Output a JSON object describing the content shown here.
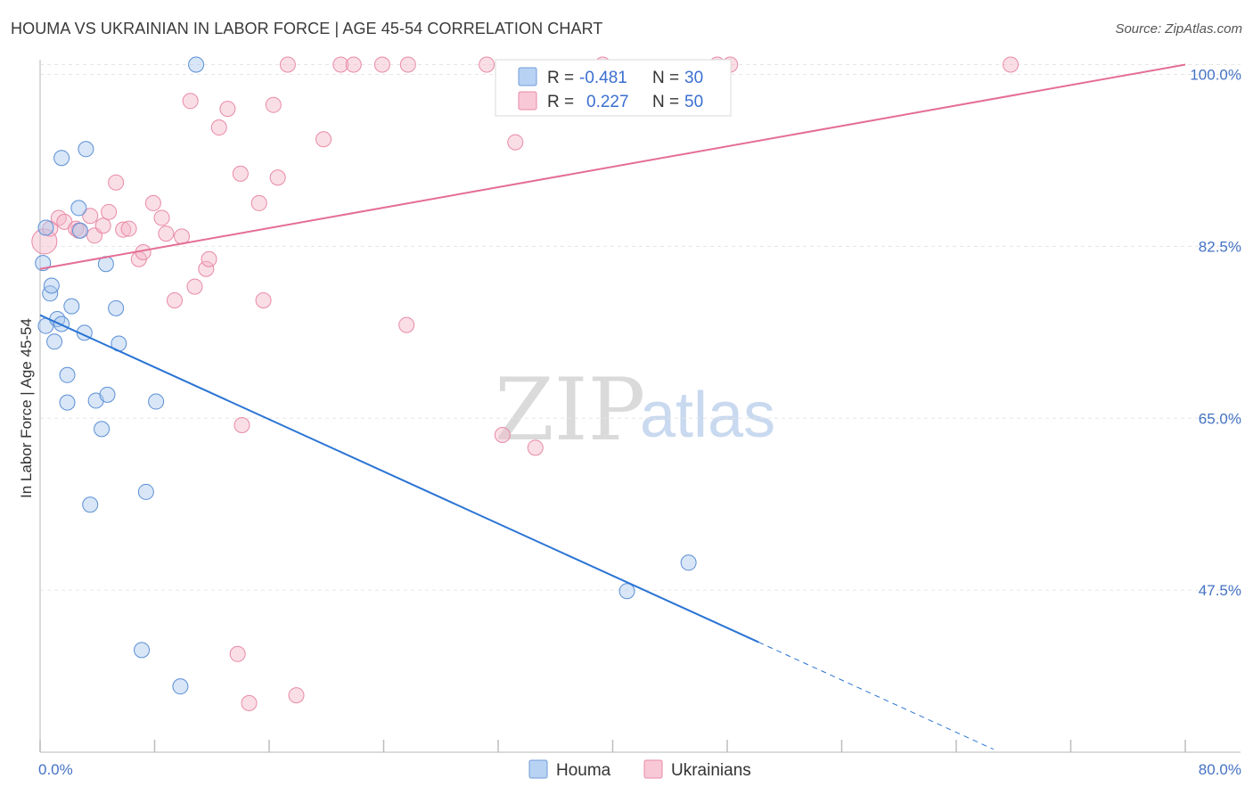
{
  "header": {
    "title": "HOUMA VS UKRAINIAN IN LABOR FORCE | AGE 45-54 CORRELATION CHART",
    "source": "Source: ZipAtlas.com"
  },
  "watermark": {
    "zip": "ZIP",
    "atlas": "atlas"
  },
  "legend": {
    "rows": [
      {
        "r_label": "R =",
        "r_value": "-0.481",
        "n_label": "N =",
        "n_value": "30",
        "color": "#a9c7ee"
      },
      {
        "r_label": "R =",
        "r_value": "0.227",
        "n_label": "N =",
        "n_value": "50",
        "color": "#f4b6c8"
      }
    ]
  },
  "bottom_legend": {
    "houma": "Houma",
    "ukrainians": "Ukrainians"
  },
  "chart_data": {
    "type": "scatter",
    "title": "HOUMA VS UKRAINIAN IN LABOR FORCE | AGE 45-54 CORRELATION CHART",
    "xlabel": "",
    "ylabel": "In Labor Force | Age 45-54",
    "xlim": [
      0,
      80
    ],
    "ylim": [
      31,
      101.5
    ],
    "x_tick_labels": [
      "0.0%",
      "80.0%"
    ],
    "y_ticks": [
      47.5,
      65.0,
      82.5,
      100.0
    ],
    "y_tick_labels": [
      "47.5%",
      "65.0%",
      "82.5%",
      "100.0%"
    ],
    "grid": true,
    "series": [
      {
        "name": "Houma",
        "color": "#a9c7ee",
        "stroke": "#5b8fd6",
        "trend_color": "#2a74d4",
        "r": -0.481,
        "n": 30,
        "trend": {
          "x0": 0,
          "y0": 75.5,
          "x1": 50.2,
          "y1": 42.2,
          "dash_to_x": 66.6,
          "dash_to_y": 31.3
        },
        "points": [
          [
            0.2,
            80.8
          ],
          [
            0.4,
            74.4
          ],
          [
            0.7,
            77.7
          ],
          [
            0.8,
            78.5
          ],
          [
            1.0,
            72.8
          ],
          [
            1.2,
            75.1
          ],
          [
            1.5,
            74.6
          ],
          [
            1.5,
            91.5
          ],
          [
            1.9,
            66.6
          ],
          [
            1.9,
            69.4
          ],
          [
            2.2,
            76.4
          ],
          [
            2.7,
            86.4
          ],
          [
            2.8,
            84.1
          ],
          [
            3.1,
            73.7
          ],
          [
            3.2,
            92.4
          ],
          [
            3.5,
            56.2
          ],
          [
            3.9,
            66.8
          ],
          [
            4.3,
            63.9
          ],
          [
            4.7,
            67.4
          ],
          [
            4.6,
            80.7
          ],
          [
            5.3,
            76.2
          ],
          [
            5.5,
            72.6
          ],
          [
            7.4,
            57.5
          ],
          [
            7.1,
            41.4
          ],
          [
            8.1,
            66.7
          ],
          [
            9.8,
            37.7
          ],
          [
            10.9,
            101.0
          ],
          [
            41.0,
            47.4
          ],
          [
            45.3,
            50.3
          ],
          [
            0.4,
            84.4
          ]
        ]
      },
      {
        "name": "Ukrainians",
        "color": "#f4b6c8",
        "stroke": "#e88aa6",
        "trend_color": "#e46e94",
        "r": 0.227,
        "n": 50,
        "trend": {
          "x0": 0,
          "y0": 80.2,
          "x1": 80,
          "y1": 101.0
        },
        "points": [
          [
            0.3,
            83.0
          ],
          [
            0.7,
            84.3
          ],
          [
            1.3,
            85.4
          ],
          [
            1.7,
            85.0
          ],
          [
            2.5,
            84.3
          ],
          [
            2.7,
            84.1
          ],
          [
            3.5,
            85.6
          ],
          [
            3.8,
            83.6
          ],
          [
            4.4,
            84.6
          ],
          [
            4.8,
            86.0
          ],
          [
            5.3,
            89.0
          ],
          [
            5.8,
            84.2
          ],
          [
            6.2,
            84.3
          ],
          [
            6.9,
            81.2
          ],
          [
            7.2,
            81.9
          ],
          [
            7.9,
            86.9
          ],
          [
            8.5,
            85.4
          ],
          [
            8.8,
            83.8
          ],
          [
            9.4,
            77.0
          ],
          [
            9.9,
            83.5
          ],
          [
            10.5,
            97.3
          ],
          [
            10.8,
            78.4
          ],
          [
            11.6,
            80.2
          ],
          [
            11.8,
            81.2
          ],
          [
            12.5,
            94.6
          ],
          [
            13.1,
            96.5
          ],
          [
            13.8,
            41.0
          ],
          [
            14.0,
            89.9
          ],
          [
            14.1,
            64.3
          ],
          [
            14.6,
            36.0
          ],
          [
            15.3,
            86.9
          ],
          [
            15.6,
            77.0
          ],
          [
            16.3,
            96.9
          ],
          [
            16.6,
            89.5
          ],
          [
            17.3,
            101.0
          ],
          [
            17.9,
            36.8
          ],
          [
            19.8,
            93.4
          ],
          [
            21.0,
            101.0
          ],
          [
            21.9,
            101.0
          ],
          [
            23.9,
            101.0
          ],
          [
            25.7,
            101.0
          ],
          [
            25.6,
            74.5
          ],
          [
            31.2,
            101.0
          ],
          [
            32.3,
            63.3
          ],
          [
            33.2,
            93.1
          ],
          [
            34.6,
            62.0
          ],
          [
            39.3,
            101.0
          ],
          [
            47.3,
            101.0
          ],
          [
            48.2,
            101.0
          ],
          [
            67.8,
            101.0
          ]
        ]
      }
    ]
  }
}
